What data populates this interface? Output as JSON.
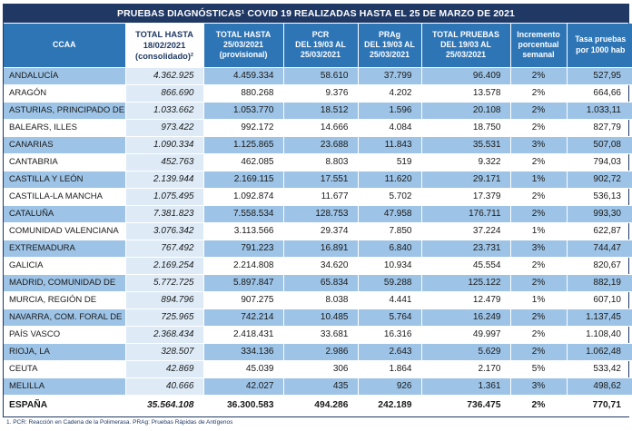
{
  "title": "PRUEBAS DIAGNÓSTICAS¹ COVID 19 REALIZADAS HASTA EL 25 DE MARZO DE 2021",
  "footnote": "1.  PCR: Reacción en Cadena de la Polimerasa.  PRAg: Pruebas Rápidas de Antígenos",
  "colors": {
    "title_bg": "#1F3864",
    "header_bg": "#2E75B6",
    "row_stripe": "#9DC3E6",
    "consolidated_column_bg": "#DEEBF7",
    "header_text": "#FFFFFF"
  },
  "table": {
    "headers": [
      "CCAA",
      "TOTAL HASTA\n18/02/2021\n(consolidado)²",
      "TOTAL  HASTA\n25/03/2021\n(provisional)",
      "PCR\nDEL 19/03 AL\n25/03/2021",
      "PRAg\nDEL 19/03 AL\n25/03/2021",
      "TOTAL PRUEBAS\nDEL 19/03 AL\n25/03/2021",
      "Incremento\nporcentual\nsemanal",
      "Tasa pruebas\npor 1000 hab"
    ],
    "rows": [
      {
        "ccaa": "ANDALUCÍA",
        "consolidado": "4.362.925",
        "provisional": "4.459.334",
        "pcr": "58.610",
        "prag": "37.799",
        "total_pruebas": "96.409",
        "incremento": "2%",
        "tasa": "527,95"
      },
      {
        "ccaa": "ARAGÓN",
        "consolidado": "866.690",
        "provisional": "880.268",
        "pcr": "9.376",
        "prag": "4.202",
        "total_pruebas": "13.578",
        "incremento": "2%",
        "tasa": "664,66"
      },
      {
        "ccaa": "ASTURIAS, PRINCIPADO DE",
        "consolidado": "1.033.662",
        "provisional": "1.053.770",
        "pcr": "18.512",
        "prag": "1.596",
        "total_pruebas": "20.108",
        "incremento": "2%",
        "tasa": "1.033,11"
      },
      {
        "ccaa": "BALEARS, ILLES",
        "consolidado": "973.422",
        "provisional": "992.172",
        "pcr": "14.666",
        "prag": "4.084",
        "total_pruebas": "18.750",
        "incremento": "2%",
        "tasa": "827,79"
      },
      {
        "ccaa": "CANARIAS",
        "consolidado": "1.090.334",
        "provisional": "1.125.865",
        "pcr": "23.688",
        "prag": "11.843",
        "total_pruebas": "35.531",
        "incremento": "3%",
        "tasa": "507,08"
      },
      {
        "ccaa": "CANTABRIA",
        "consolidado": "452.763",
        "provisional": "462.085",
        "pcr": "8.803",
        "prag": "519",
        "total_pruebas": "9.322",
        "incremento": "2%",
        "tasa": "794,03"
      },
      {
        "ccaa": "CASTILLA Y LEÓN",
        "consolidado": "2.139.944",
        "provisional": "2.169.115",
        "pcr": "17.551",
        "prag": "11.620",
        "total_pruebas": "29.171",
        "incremento": "1%",
        "tasa": "902,72"
      },
      {
        "ccaa": "CASTILLA-LA MANCHA",
        "consolidado": "1.075.495",
        "provisional": "1.092.874",
        "pcr": "11.677",
        "prag": "5.702",
        "total_pruebas": "17.379",
        "incremento": "2%",
        "tasa": "536,13"
      },
      {
        "ccaa": "CATALUÑA",
        "consolidado": "7.381.823",
        "provisional": "7.558.534",
        "pcr": "128.753",
        "prag": "47.958",
        "total_pruebas": "176.711",
        "incremento": "2%",
        "tasa": "993,30"
      },
      {
        "ccaa": "COMUNIDAD VALENCIANA",
        "consolidado": "3.076.342",
        "provisional": "3.113.566",
        "pcr": "29.374",
        "prag": "7.850",
        "total_pruebas": "37.224",
        "incremento": "1%",
        "tasa": "622,87"
      },
      {
        "ccaa": "EXTREMADURA",
        "consolidado": "767.492",
        "provisional": "791.223",
        "pcr": "16.891",
        "prag": "6.840",
        "total_pruebas": "23.731",
        "incremento": "3%",
        "tasa": "744,47"
      },
      {
        "ccaa": "GALICIA",
        "consolidado": "2.169.254",
        "provisional": "2.214.808",
        "pcr": "34.620",
        "prag": "10.934",
        "total_pruebas": "45.554",
        "incremento": "2%",
        "tasa": "820,67"
      },
      {
        "ccaa": "MADRID, COMUNIDAD DE",
        "consolidado": "5.772.725",
        "provisional": "5.897.847",
        "pcr": "65.834",
        "prag": "59.288",
        "total_pruebas": "125.122",
        "incremento": "2%",
        "tasa": "882,19"
      },
      {
        "ccaa": "MURCIA, REGIÓN DE",
        "consolidado": "894.796",
        "provisional": "907.275",
        "pcr": "8.038",
        "prag": "4.441",
        "total_pruebas": "12.479",
        "incremento": "1%",
        "tasa": "607,10"
      },
      {
        "ccaa": "NAVARRA, COM. FORAL DE",
        "consolidado": "725.965",
        "provisional": "742.214",
        "pcr": "10.485",
        "prag": "5.764",
        "total_pruebas": "16.249",
        "incremento": "2%",
        "tasa": "1.137,45"
      },
      {
        "ccaa": "PAÍS VASCO",
        "consolidado": "2.368.434",
        "provisional": "2.418.431",
        "pcr": "33.681",
        "prag": "16.316",
        "total_pruebas": "49.997",
        "incremento": "2%",
        "tasa": "1.108,40"
      },
      {
        "ccaa": "RIOJA, LA",
        "consolidado": "328.507",
        "provisional": "334.136",
        "pcr": "2.986",
        "prag": "2.643",
        "total_pruebas": "5.629",
        "incremento": "2%",
        "tasa": "1.062,48"
      },
      {
        "ccaa": "CEUTA",
        "consolidado": "42.869",
        "provisional": "45.039",
        "pcr": "306",
        "prag": "1.864",
        "total_pruebas": "2.170",
        "incremento": "5%",
        "tasa": "533,42"
      },
      {
        "ccaa": "MELILLA",
        "consolidado": "40.666",
        "provisional": "42.027",
        "pcr": "435",
        "prag": "926",
        "total_pruebas": "1.361",
        "incremento": "3%",
        "tasa": "498,62"
      }
    ],
    "total_row": {
      "ccaa": "ESPAÑA",
      "consolidado": "35.564.108",
      "provisional": "36.300.583",
      "pcr": "494.286",
      "prag": "242.189",
      "total_pruebas": "736.475",
      "incremento": "2%",
      "tasa": "770,71"
    }
  }
}
